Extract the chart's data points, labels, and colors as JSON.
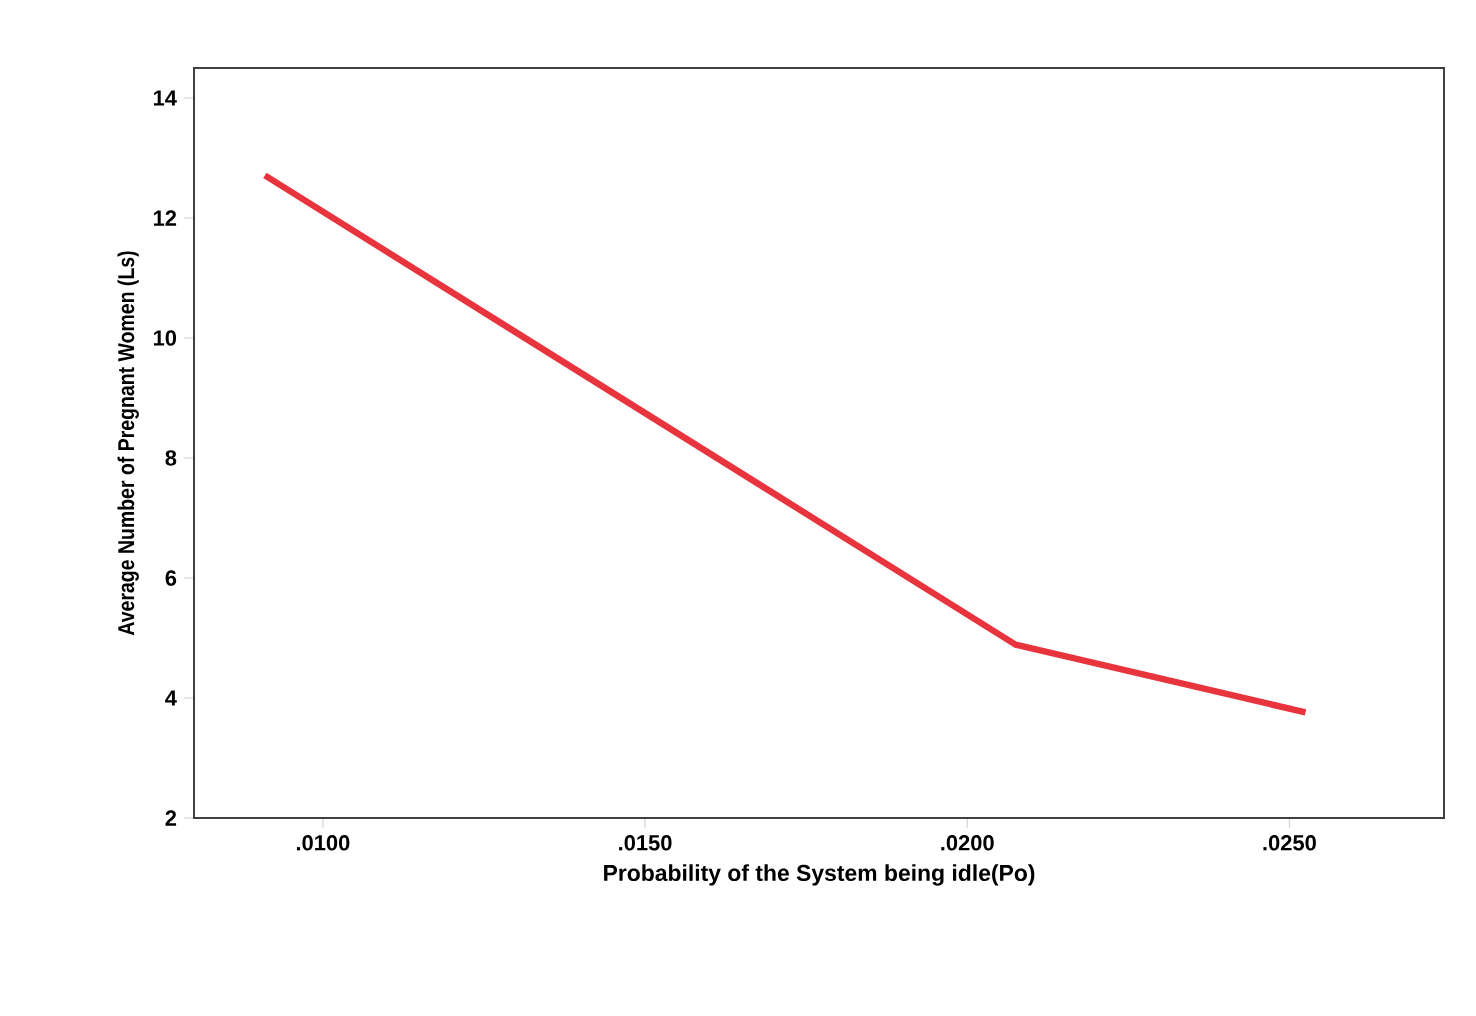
{
  "chart_data": {
    "type": "line",
    "xlabel": "Probability of the System being idle(Po)",
    "ylabel": "Average Number of Pregnant Women (Ls)",
    "x": [
      0.0091,
      0.02075,
      0.02525
    ],
    "series": [
      {
        "color": "#e8343c",
        "values": [
          12.71,
          4.89,
          3.76
        ]
      }
    ],
    "xlim": [
      0.008,
      0.0274
    ],
    "xticks": [
      {
        "value": 0.01,
        "label": ".0100"
      },
      {
        "value": 0.015,
        "label": ".0150"
      },
      {
        "value": 0.02,
        "label": ".0200"
      },
      {
        "value": 0.025,
        "label": ".0250"
      }
    ],
    "ylim": [
      2,
      14.5
    ],
    "yticks": [
      2,
      4,
      6,
      8,
      10,
      12,
      14
    ],
    "grid": false,
    "marker": "none",
    "line_style": "solid"
  }
}
